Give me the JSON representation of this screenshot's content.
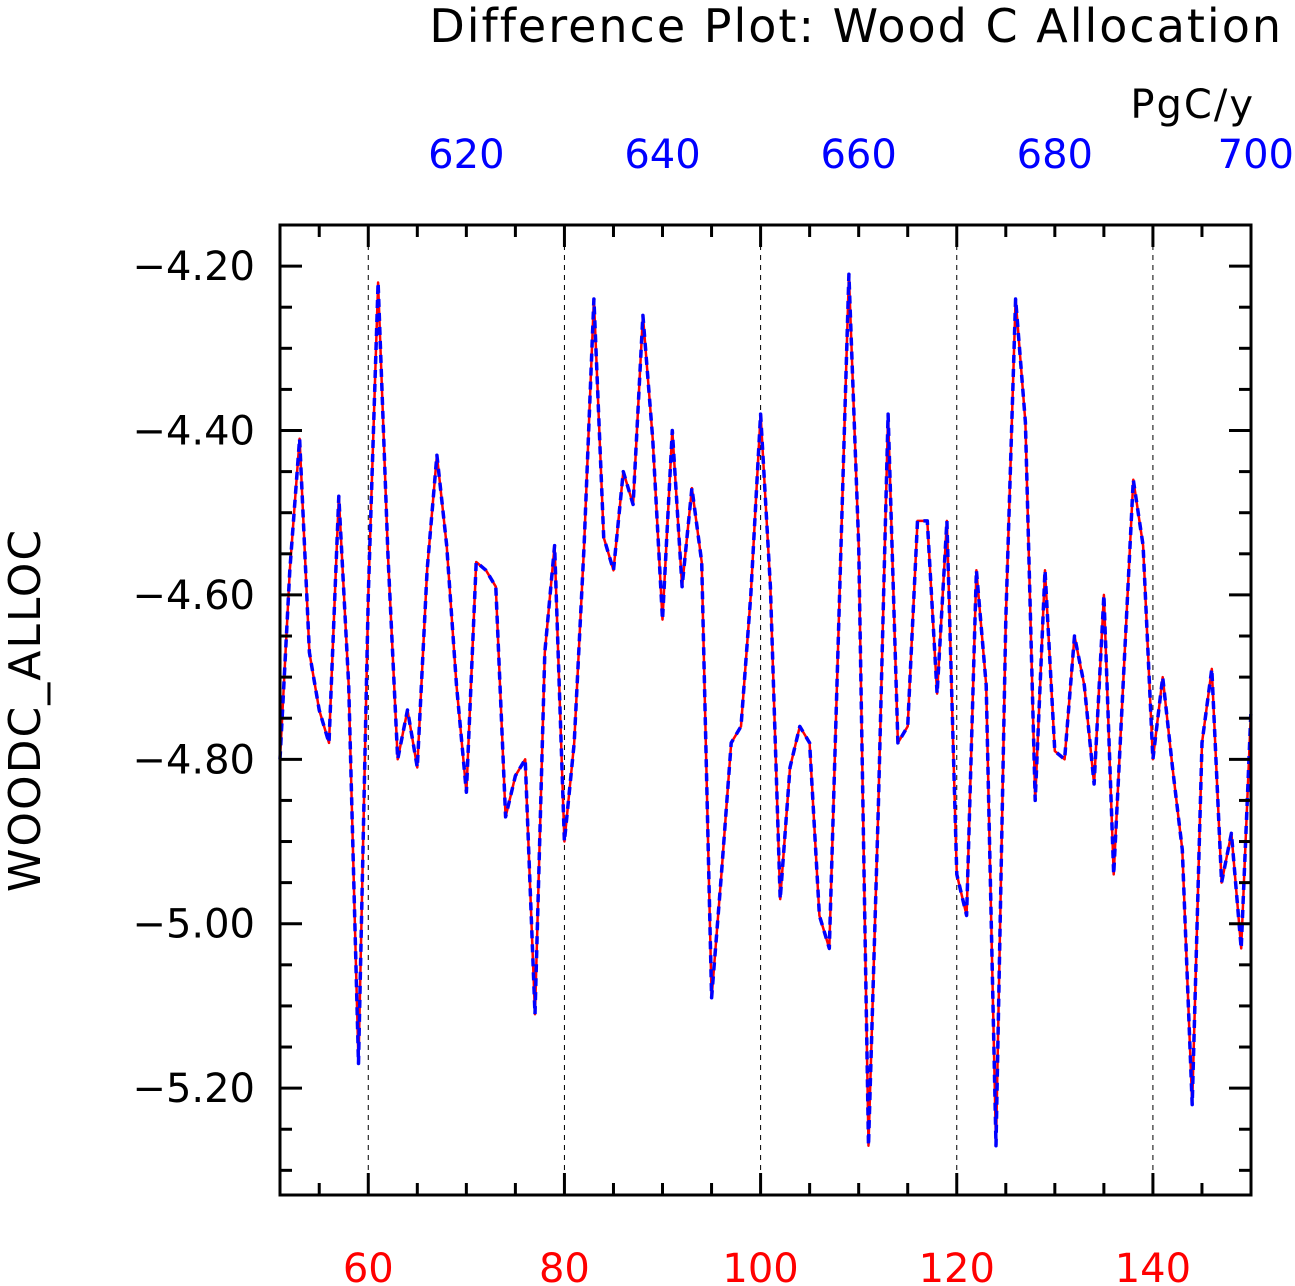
{
  "chart_data": {
    "type": "line",
    "title": "Difference Plot: Wood C Allocation",
    "units": "PgC/y",
    "ylabel": "WOODC_ALLOC",
    "xlim_bottom": [
      51,
      150
    ],
    "xlim_top": [
      601,
      700
    ],
    "ylim": [
      -5.33,
      -4.15
    ],
    "grid": "vertical-dashed",
    "x_ticks_bottom": [
      "60",
      "80",
      "100",
      "120",
      "140"
    ],
    "x_ticks_top": [
      "620",
      "640",
      "660",
      "680",
      "700"
    ],
    "y_ticks": [
      "-4.20",
      "-4.40",
      "-4.60",
      "-4.80",
      "-5.00",
      "-5.20"
    ],
    "colors": {
      "bottom_axis": "#ff0000",
      "top_axis": "#0000ff",
      "series_a": "#ff0000",
      "series_b": "#0000ff"
    },
    "series": [
      {
        "x": [
          51,
          52,
          53,
          54,
          55,
          56,
          57,
          58,
          59,
          60,
          61,
          62,
          63,
          64,
          65,
          66,
          67,
          68,
          69,
          70,
          71,
          72,
          73,
          74,
          75,
          76,
          77,
          78,
          79,
          80,
          81,
          82,
          83,
          84,
          85,
          86,
          87,
          88,
          89,
          90,
          91,
          92,
          93,
          94,
          95,
          96,
          97,
          98,
          99,
          100,
          101,
          102,
          103,
          104,
          105,
          106,
          107,
          108,
          109,
          110,
          111,
          112,
          113,
          114,
          115,
          116,
          117,
          118,
          119,
          120,
          121,
          122,
          123,
          124,
          125,
          126,
          127,
          128,
          129,
          130,
          131,
          132,
          133,
          134,
          135,
          136,
          137,
          138,
          139,
          140,
          141,
          142,
          143,
          144,
          145,
          146,
          147,
          148,
          149,
          150
        ],
        "y": [
          -4.8,
          -4.57,
          -4.41,
          -4.67,
          -4.74,
          -4.78,
          -4.48,
          -4.71,
          -5.17,
          -4.6,
          -4.22,
          -4.55,
          -4.8,
          -4.74,
          -4.81,
          -4.57,
          -4.43,
          -4.54,
          -4.71,
          -4.84,
          -4.56,
          -4.57,
          -4.59,
          -4.87,
          -4.82,
          -4.8,
          -5.11,
          -4.67,
          -4.54,
          -4.9,
          -4.78,
          -4.54,
          -4.24,
          -4.53,
          -4.57,
          -4.45,
          -4.49,
          -4.26,
          -4.41,
          -4.63,
          -4.4,
          -4.59,
          -4.47,
          -4.56,
          -5.09,
          -4.94,
          -4.78,
          -4.76,
          -4.6,
          -4.38,
          -4.59,
          -4.97,
          -4.81,
          -4.76,
          -4.78,
          -4.99,
          -5.03,
          -4.62,
          -4.21,
          -4.54,
          -5.27,
          -4.86,
          -4.38,
          -4.78,
          -4.76,
          -4.51,
          -4.51,
          -4.72,
          -4.51,
          -4.94,
          -4.99,
          -4.57,
          -4.71,
          -5.27,
          -4.63,
          -4.24,
          -4.39,
          -4.85,
          -4.57,
          -4.79,
          -4.8,
          -4.65,
          -4.71,
          -4.83,
          -4.6,
          -4.94,
          -4.7,
          -4.46,
          -4.54,
          -4.8,
          -4.7,
          -4.81,
          -4.91,
          -5.22,
          -4.78,
          -4.69,
          -4.95,
          -4.89,
          -5.03,
          -4.74
        ]
      },
      {
        "x": [
          51,
          52,
          53,
          54,
          55,
          56,
          57,
          58,
          59,
          60,
          61,
          62,
          63,
          64,
          65,
          66,
          67,
          68,
          69,
          70,
          71,
          72,
          73,
          74,
          75,
          76,
          77,
          78,
          79,
          80,
          81,
          82,
          83,
          84,
          85,
          86,
          87,
          88,
          89,
          90,
          91,
          92,
          93,
          94,
          95,
          96,
          97,
          98,
          99,
          100,
          101,
          102,
          103,
          104,
          105,
          106,
          107,
          108,
          109,
          110,
          111,
          112,
          113,
          114,
          115,
          116,
          117,
          118,
          119,
          120,
          121,
          122,
          123,
          124,
          125,
          126,
          127,
          128,
          129,
          130,
          131,
          132,
          133,
          134,
          135,
          136,
          137,
          138,
          139,
          140,
          141,
          142,
          143,
          144,
          145,
          146,
          147,
          148,
          149,
          150
        ],
        "y": [
          -4.8,
          -4.57,
          -4.41,
          -4.67,
          -4.74,
          -4.78,
          -4.48,
          -4.71,
          -5.17,
          -4.6,
          -4.22,
          -4.55,
          -4.8,
          -4.74,
          -4.81,
          -4.57,
          -4.43,
          -4.54,
          -4.71,
          -4.84,
          -4.56,
          -4.57,
          -4.59,
          -4.87,
          -4.82,
          -4.8,
          -5.11,
          -4.67,
          -4.54,
          -4.9,
          -4.78,
          -4.54,
          -4.24,
          -4.53,
          -4.57,
          -4.45,
          -4.49,
          -4.26,
          -4.41,
          -4.63,
          -4.4,
          -4.59,
          -4.47,
          -4.56,
          -5.09,
          -4.94,
          -4.78,
          -4.76,
          -4.6,
          -4.38,
          -4.59,
          -4.97,
          -4.81,
          -4.76,
          -4.78,
          -4.99,
          -5.03,
          -4.62,
          -4.21,
          -4.54,
          -5.27,
          -4.86,
          -4.38,
          -4.78,
          -4.76,
          -4.51,
          -4.51,
          -4.72,
          -4.51,
          -4.94,
          -4.99,
          -4.57,
          -4.71,
          -5.27,
          -4.63,
          -4.24,
          -4.39,
          -4.85,
          -4.57,
          -4.79,
          -4.8,
          -4.65,
          -4.71,
          -4.83,
          -4.6,
          -4.94,
          -4.7,
          -4.46,
          -4.54,
          -4.8,
          -4.7,
          -4.81,
          -4.91,
          -5.22,
          -4.78,
          -4.69,
          -4.95,
          -4.89,
          -5.03,
          -4.74
        ]
      }
    ]
  }
}
